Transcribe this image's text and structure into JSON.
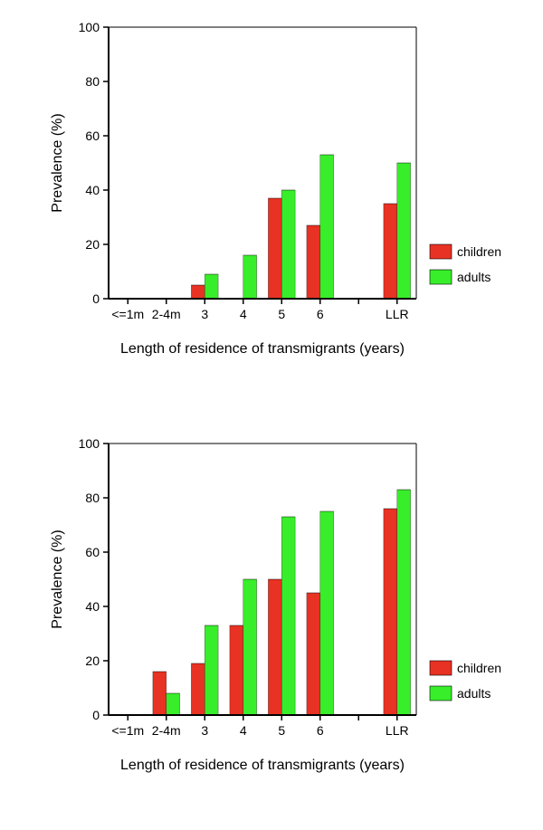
{
  "charts": [
    {
      "type": "bar",
      "categories": [
        "<=1m",
        "2-4m",
        "3",
        "4",
        "5",
        "6",
        "",
        "LLR"
      ],
      "series": [
        {
          "name": "children",
          "color": "#e83223",
          "values": [
            0,
            0,
            5,
            0,
            37,
            27,
            null,
            35
          ]
        },
        {
          "name": "adults",
          "color": "#38ee2a",
          "values": [
            0,
            0,
            9,
            16,
            40,
            53,
            null,
            50
          ]
        }
      ],
      "ylim": [
        0,
        100
      ],
      "ytick_step": 20,
      "ylabel": "Prevalence  (%)",
      "xlabel": "Length of residence of transmigrants (years)",
      "background_color": "#ffffff",
      "axis_color": "#000000",
      "tick_font_size": 14,
      "label_font_size": 16,
      "legend_font_size": 14,
      "legend_items": [
        {
          "label": "children",
          "color": "#e83223"
        },
        {
          "label": "adults",
          "color": "#38ee2a"
        }
      ]
    },
    {
      "type": "bar",
      "categories": [
        "<=1m",
        "2-4m",
        "3",
        "4",
        "5",
        "6",
        "",
        "LLR"
      ],
      "series": [
        {
          "name": "children",
          "color": "#e83223",
          "values": [
            0,
            16,
            19,
            33,
            50,
            45,
            null,
            76
          ]
        },
        {
          "name": "adults",
          "color": "#38ee2a",
          "values": [
            0,
            8,
            33,
            50,
            73,
            75,
            null,
            83
          ]
        }
      ],
      "ylim": [
        0,
        100
      ],
      "ytick_step": 20,
      "ylabel": "Prevalence  (%)",
      "xlabel": "Length of residence of transmigrants (years)",
      "background_color": "#ffffff",
      "axis_color": "#000000",
      "tick_font_size": 14,
      "label_font_size": 16,
      "legend_font_size": 14,
      "legend_items": [
        {
          "label": "children",
          "color": "#e83223"
        },
        {
          "label": "adults",
          "color": "#38ee2a"
        }
      ]
    }
  ]
}
